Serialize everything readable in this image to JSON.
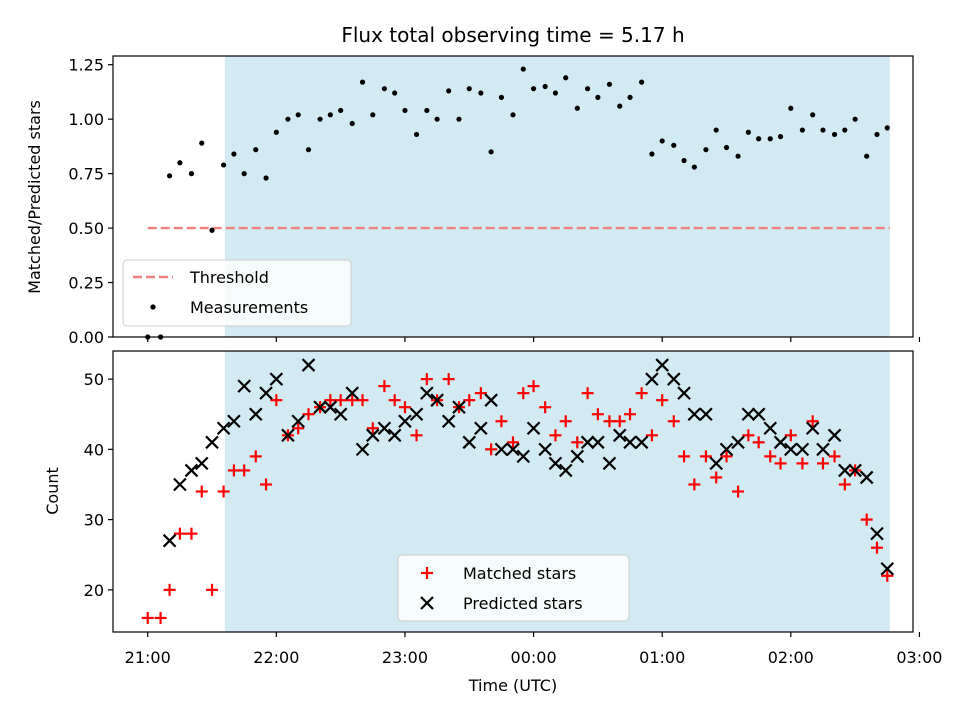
{
  "chart_data": [
    {
      "type": "scatter",
      "panel": "top",
      "title": "Flux total observing time = 5.17 h",
      "xlabel": "",
      "ylabel": "Matched/Predicted stars",
      "x_unit": "hours since 21:00 UTC",
      "xlim": [
        -0.27,
        5.95
      ],
      "ylim": [
        0.0,
        1.29
      ],
      "yticks": [
        0.0,
        0.25,
        0.5,
        0.75,
        1.0,
        1.25
      ],
      "ytick_labels": [
        "0.00",
        "0.25",
        "0.50",
        "0.75",
        "1.00",
        "1.25"
      ],
      "shaded_span": [
        0.6,
        5.77
      ],
      "shade_color": "#add8e6",
      "threshold": {
        "name": "Threshold",
        "y": 0.5,
        "x_range": [
          0.0,
          5.77
        ],
        "color": "#f08080"
      },
      "legend": {
        "loc": "lower left",
        "entries": [
          "Threshold",
          "Measurements"
        ]
      },
      "series": [
        {
          "name": "Measurements",
          "color": "#000000",
          "marker": "dot",
          "x": [
            0.0,
            0.1,
            0.17,
            0.25,
            0.34,
            0.42,
            0.5,
            0.59,
            0.67,
            0.75,
            0.84,
            0.92,
            1.0,
            1.09,
            1.17,
            1.25,
            1.34,
            1.42,
            1.5,
            1.59,
            1.67,
            1.75,
            1.84,
            1.92,
            2.0,
            2.09,
            2.17,
            2.25,
            2.34,
            2.42,
            2.5,
            2.59,
            2.67,
            2.75,
            2.84,
            2.92,
            3.0,
            3.09,
            3.17,
            3.25,
            3.34,
            3.42,
            3.5,
            3.59,
            3.67,
            3.75,
            3.84,
            3.92,
            4.0,
            4.09,
            4.17,
            4.25,
            4.34,
            4.42,
            4.5,
            4.59,
            4.67,
            4.75,
            4.84,
            4.92,
            5.0,
            5.09,
            5.17,
            5.25,
            5.34,
            5.42,
            5.5,
            5.59,
            5.67,
            5.75
          ],
          "y": [
            0.0,
            0.0,
            0.74,
            0.8,
            0.75,
            0.89,
            0.49,
            0.79,
            0.84,
            0.75,
            0.86,
            0.73,
            0.94,
            1.0,
            1.02,
            0.86,
            1.0,
            1.02,
            1.04,
            0.98,
            1.17,
            1.02,
            1.14,
            1.12,
            1.04,
            0.93,
            1.04,
            1.0,
            1.13,
            1.0,
            1.14,
            1.12,
            0.85,
            1.1,
            1.02,
            1.23,
            1.14,
            1.15,
            1.12,
            1.19,
            1.05,
            1.14,
            1.1,
            1.16,
            1.06,
            1.1,
            1.17,
            0.84,
            0.9,
            0.88,
            0.81,
            0.78,
            0.86,
            0.95,
            0.87,
            0.83,
            0.94,
            0.91,
            0.91,
            0.92,
            1.05,
            0.95,
            1.02,
            0.95,
            0.93,
            0.95,
            1.0,
            0.83,
            0.93,
            0.96
          ]
        }
      ]
    },
    {
      "type": "scatter",
      "panel": "bottom",
      "xlabel": "Time (UTC)",
      "ylabel": "Count",
      "x_unit": "hours since 21:00 UTC",
      "xlim": [
        -0.27,
        5.95
      ],
      "ylim": [
        14,
        54
      ],
      "yticks": [
        20,
        30,
        40,
        50
      ],
      "xticks": [
        0,
        1,
        2,
        3,
        4,
        5,
        6
      ],
      "xtick_labels": [
        "21:00",
        "22:00",
        "23:00",
        "00:00",
        "01:00",
        "02:00",
        "03:00"
      ],
      "shaded_span": [
        0.6,
        5.77
      ],
      "shade_color": "#add8e6",
      "legend": {
        "loc": "lower center",
        "entries": [
          "Matched stars",
          "Predicted stars"
        ]
      },
      "series": [
        {
          "name": "Matched stars",
          "color": "#ff0000",
          "marker": "plus",
          "x": [
            0.0,
            0.1,
            0.17,
            0.25,
            0.34,
            0.42,
            0.5,
            0.59,
            0.67,
            0.75,
            0.84,
            0.92,
            1.0,
            1.09,
            1.17,
            1.25,
            1.34,
            1.42,
            1.5,
            1.59,
            1.67,
            1.75,
            1.84,
            1.92,
            2.0,
            2.09,
            2.17,
            2.25,
            2.34,
            2.42,
            2.5,
            2.59,
            2.67,
            2.75,
            2.84,
            2.92,
            3.0,
            3.09,
            3.17,
            3.25,
            3.34,
            3.42,
            3.5,
            3.59,
            3.67,
            3.75,
            3.84,
            3.92,
            4.0,
            4.09,
            4.17,
            4.25,
            4.34,
            4.42,
            4.5,
            4.59,
            4.67,
            4.75,
            4.84,
            4.92,
            5.0,
            5.09,
            5.17,
            5.25,
            5.34,
            5.42,
            5.5,
            5.59,
            5.67,
            5.75
          ],
          "y": [
            16,
            16,
            20,
            28,
            28,
            34,
            20,
            34,
            37,
            37,
            39,
            35,
            47,
            42,
            43,
            45,
            46,
            47,
            47,
            47,
            47,
            43,
            49,
            47,
            46,
            42,
            50,
            47,
            50,
            46,
            47,
            48,
            40,
            44,
            41,
            48,
            49,
            46,
            42,
            44,
            41,
            48,
            45,
            44,
            44,
            45,
            48,
            42,
            47,
            44,
            39,
            35,
            39,
            36,
            39,
            34,
            42,
            41,
            39,
            38,
            42,
            38,
            44,
            38,
            39,
            35,
            37,
            30,
            26,
            22
          ]
        },
        {
          "name": "Predicted stars",
          "color": "#000000",
          "marker": "x",
          "x": [
            0.17,
            0.25,
            0.34,
            0.42,
            0.5,
            0.59,
            0.67,
            0.75,
            0.84,
            0.92,
            1.0,
            1.09,
            1.17,
            1.25,
            1.34,
            1.42,
            1.5,
            1.59,
            1.67,
            1.75,
            1.84,
            1.92,
            2.0,
            2.09,
            2.17,
            2.25,
            2.34,
            2.42,
            2.5,
            2.59,
            2.67,
            2.75,
            2.84,
            2.92,
            3.0,
            3.09,
            3.17,
            3.25,
            3.34,
            3.42,
            3.5,
            3.59,
            3.67,
            3.75,
            3.84,
            3.92,
            4.0,
            4.09,
            4.17,
            4.25,
            4.34,
            4.42,
            4.5,
            4.59,
            4.67,
            4.75,
            4.84,
            4.92,
            5.0,
            5.09,
            5.17,
            5.25,
            5.34,
            5.42,
            5.5,
            5.59,
            5.67,
            5.75
          ],
          "y": [
            27,
            35,
            37,
            38,
            41,
            43,
            44,
            49,
            45,
            48,
            50,
            42,
            44,
            52,
            46,
            46,
            45,
            48,
            40,
            42,
            43,
            42,
            44,
            45,
            48,
            47,
            44,
            46,
            41,
            43,
            47,
            40,
            40,
            39,
            43,
            40,
            38,
            37,
            39,
            41,
            41,
            38,
            42,
            41,
            41,
            50,
            52,
            50,
            48,
            45,
            45,
            38,
            40,
            41,
            45,
            45,
            43,
            41,
            40,
            40,
            43,
            40,
            42,
            37,
            37,
            36,
            28,
            23
          ]
        }
      ]
    }
  ]
}
